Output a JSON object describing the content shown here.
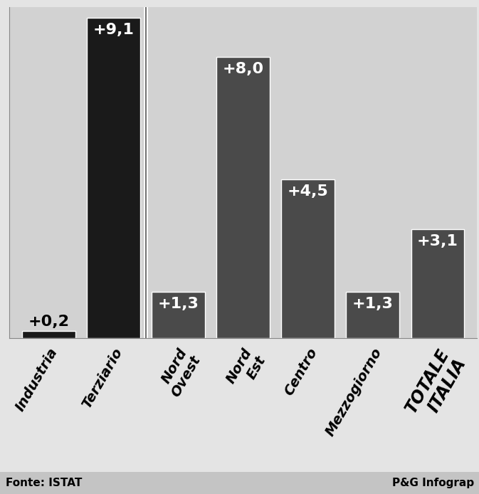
{
  "chart_data": {
    "type": "bar",
    "categories": [
      "Industria",
      "Terziario",
      "Nord Ovest",
      "Nord Est",
      "Centro",
      "Mezzogiorno",
      "TOTALE ITALIA"
    ],
    "values": [
      0.2,
      9.1,
      1.3,
      8.0,
      4.5,
      1.3,
      3.1
    ],
    "value_labels": [
      "+0,2",
      "+9,1",
      "+1,3",
      "+8,0",
      "+4,5",
      "+1,3",
      "+3,1"
    ],
    "colors": [
      "#1a1a1a",
      "#1a1a1a",
      "#4a4a4a",
      "#4a4a4a",
      "#4a4a4a",
      "#4a4a4a",
      "#4a4a4a"
    ],
    "ylim": [
      0,
      9.4
    ],
    "data_labels": true,
    "tick_labels": "x",
    "grid": false,
    "source": "Fonte: ISTAT",
    "credit": "P&G Infograp"
  }
}
